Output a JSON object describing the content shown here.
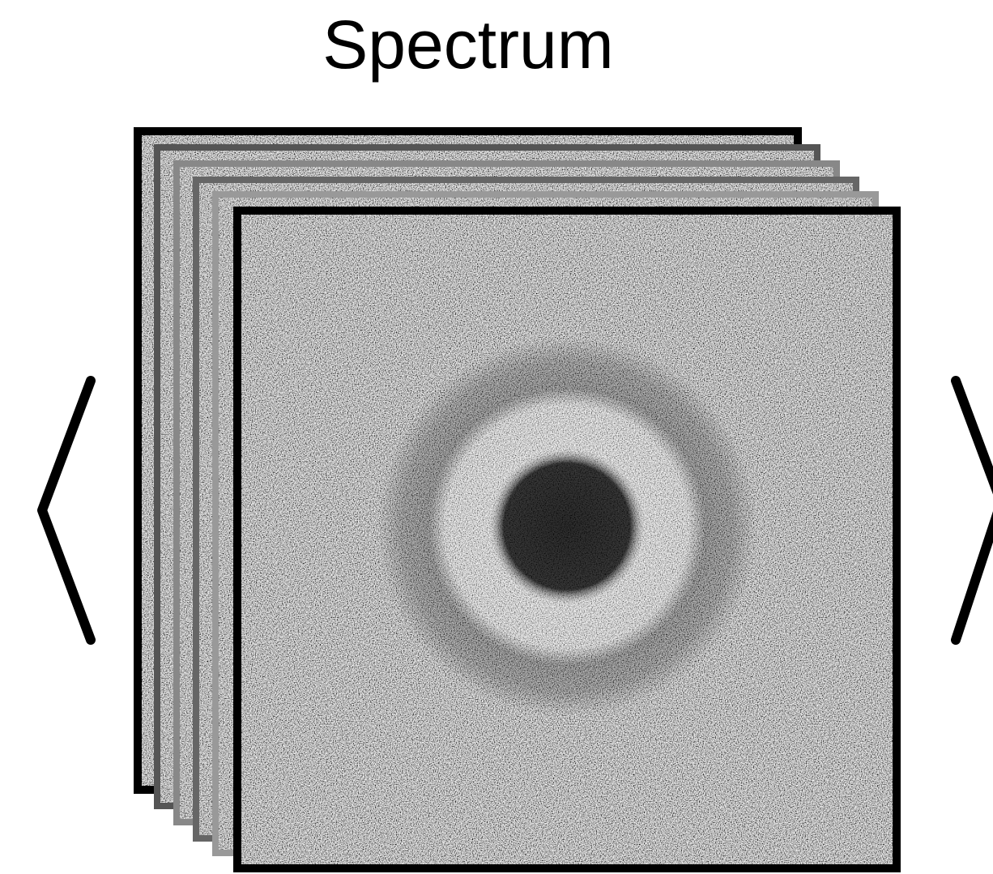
{
  "title": "Spectrum"
}
